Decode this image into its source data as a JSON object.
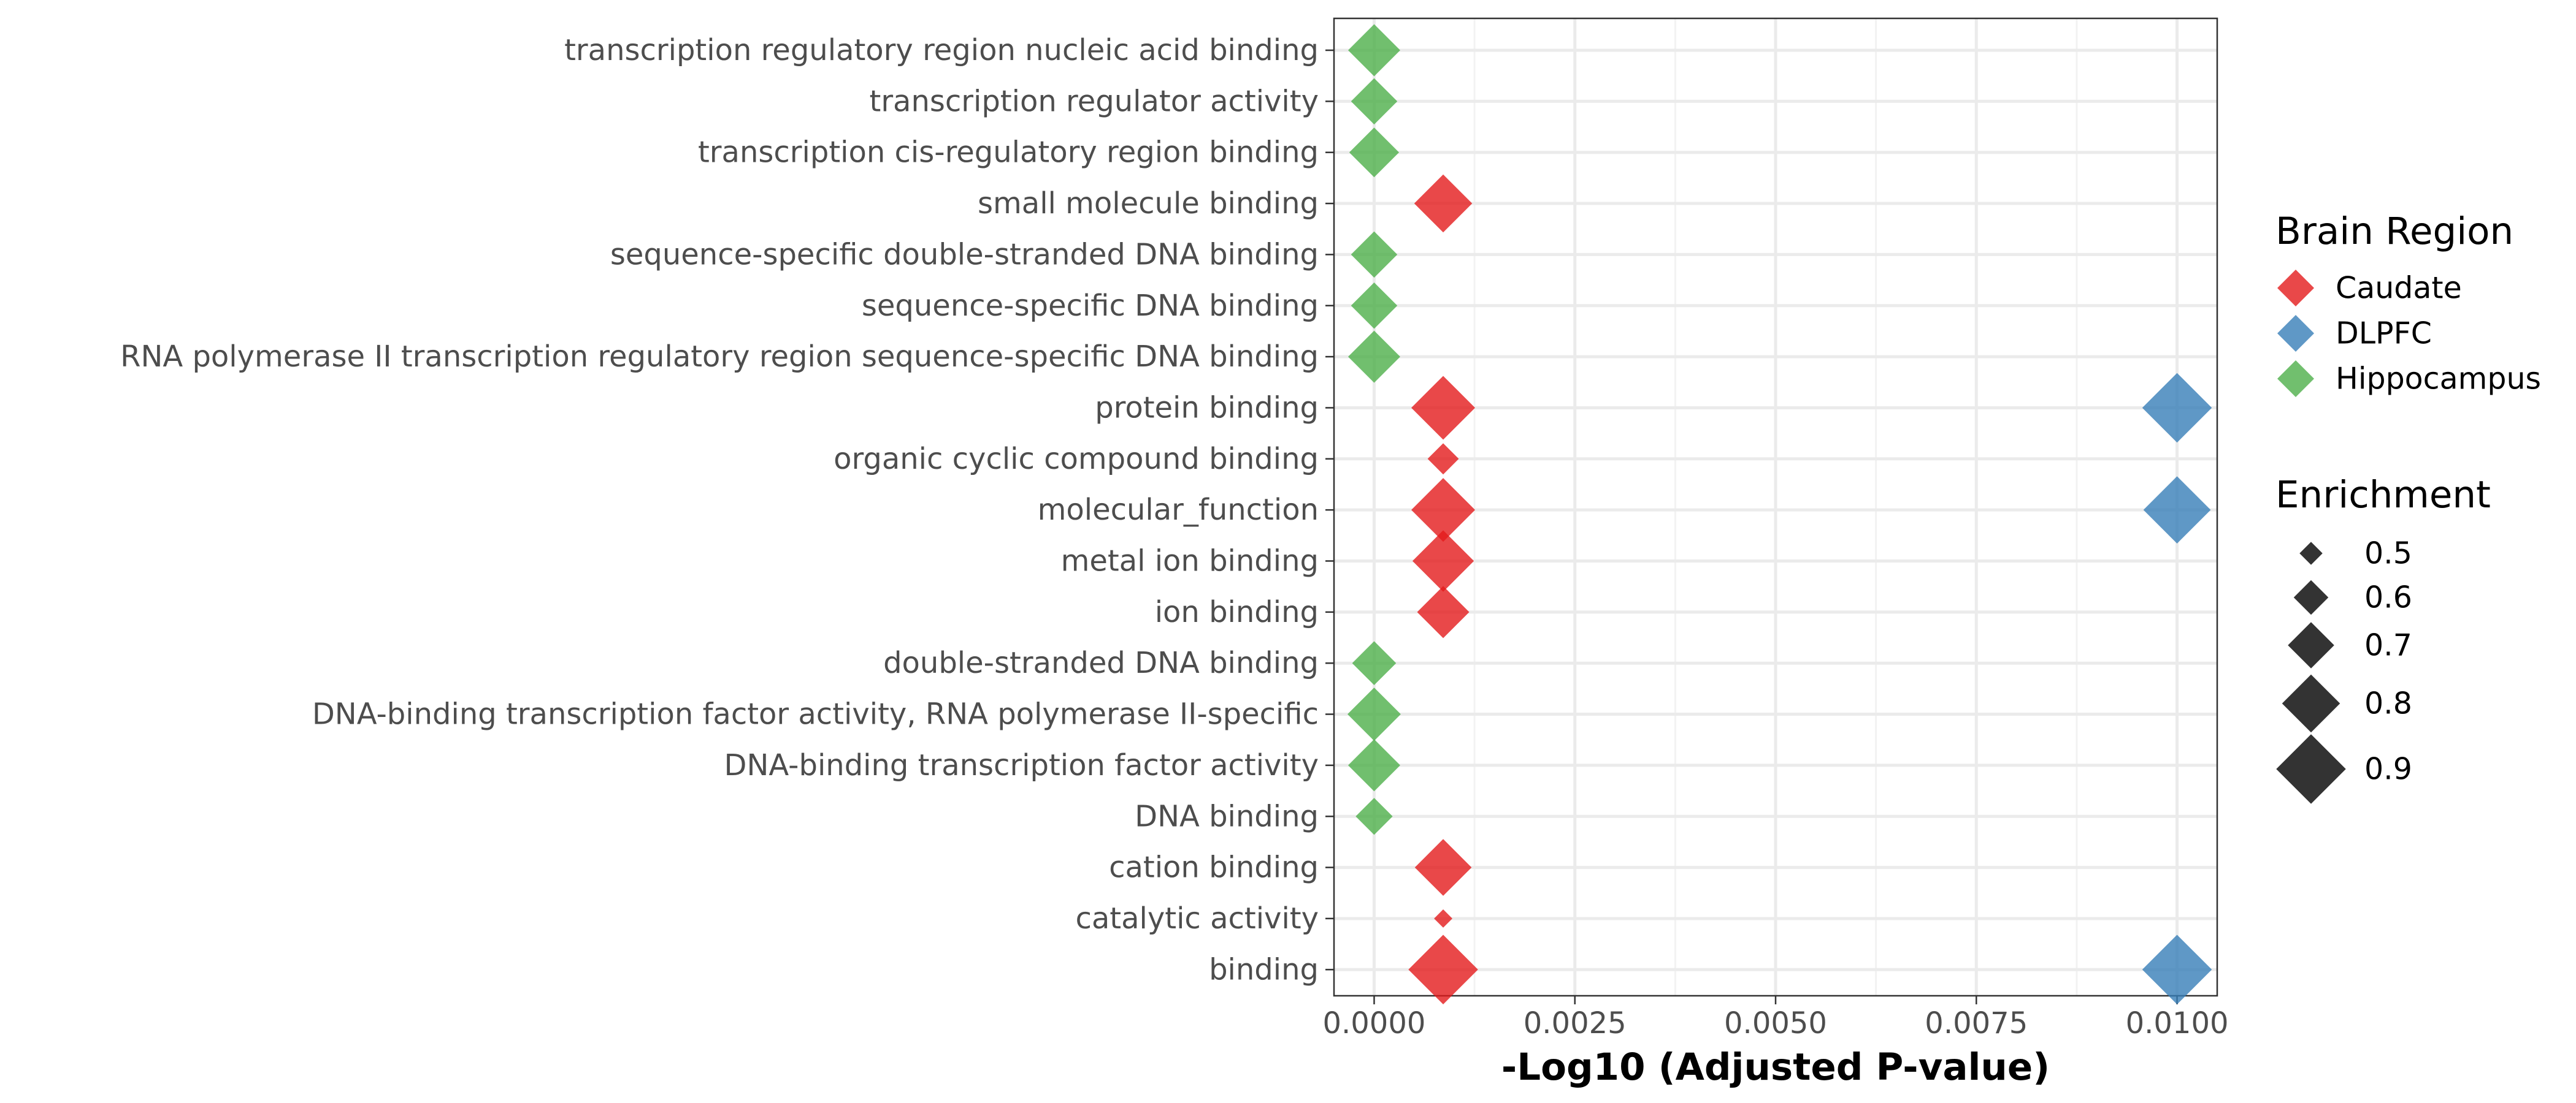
{
  "chart_data": {
    "type": "scatter",
    "xlabel": "-Log10 (Adjusted P-value)",
    "xlim": [
      -0.0005,
      0.0105
    ],
    "x_ticks": [
      0,
      0.0025,
      0.005,
      0.0075,
      0.01
    ],
    "x_tick_labels": [
      "0.0000",
      "0.0025",
      "0.0050",
      "0.0075",
      "0.0100"
    ],
    "grid": true,
    "marker": "diamond",
    "categories": [
      "transcription regulatory region nucleic acid binding",
      "transcription regulator activity",
      "transcription cis-regulatory region binding",
      "small molecule binding",
      "sequence-specific double-stranded DNA binding",
      "sequence-specific DNA binding",
      "RNA polymerase II transcription regulatory region sequence-specific DNA binding",
      "protein binding",
      "organic cyclic compound binding",
      "molecular_function",
      "metal ion binding",
      "ion binding",
      "double-stranded DNA binding",
      "DNA-binding transcription factor activity, RNA polymerase II-specific",
      "DNA-binding transcription factor activity",
      "DNA binding",
      "cation binding",
      "catalytic activity",
      "binding"
    ],
    "series": [
      {
        "name": "Caudate",
        "color": "#e41a1c",
        "points": [
          {
            "category": "small molecule binding",
            "x": 0.00086,
            "enrichment": 0.8
          },
          {
            "category": "protein binding",
            "x": 0.00086,
            "enrichment": 0.85
          },
          {
            "category": "organic cyclic compound binding",
            "x": 0.00086,
            "enrichment": 0.57
          },
          {
            "category": "molecular_function",
            "x": 0.00086,
            "enrichment": 0.85
          },
          {
            "category": "metal ion binding",
            "x": 0.00086,
            "enrichment": 0.83
          },
          {
            "category": "ion binding",
            "x": 0.00086,
            "enrichment": 0.75
          },
          {
            "category": "cation binding",
            "x": 0.00086,
            "enrichment": 0.79
          },
          {
            "category": "catalytic activity",
            "x": 0.00086,
            "enrichment": 0.46
          },
          {
            "category": "binding",
            "x": 0.00086,
            "enrichment": 0.9
          }
        ]
      },
      {
        "name": "DLPFC",
        "color": "#377eb8",
        "points": [
          {
            "category": "protein binding",
            "x": 0.01,
            "enrichment": 0.9
          },
          {
            "category": "molecular_function",
            "x": 0.01,
            "enrichment": 0.88
          },
          {
            "category": "binding",
            "x": 0.01,
            "enrichment": 0.9
          }
        ]
      },
      {
        "name": "Hippocampus",
        "color": "#4daf4a",
        "points": [
          {
            "category": "transcription regulatory region nucleic acid binding",
            "x": 0.0,
            "enrichment": 0.75
          },
          {
            "category": "transcription regulator activity",
            "x": 0.0,
            "enrichment": 0.7
          },
          {
            "category": "transcription cis-regulatory region binding",
            "x": 0.0,
            "enrichment": 0.73
          },
          {
            "category": "sequence-specific double-stranded DNA binding",
            "x": 0.0,
            "enrichment": 0.7
          },
          {
            "category": "sequence-specific DNA binding",
            "x": 0.0,
            "enrichment": 0.7
          },
          {
            "category": "RNA polymerase II transcription regulatory region sequence-specific DNA binding",
            "x": 0.0,
            "enrichment": 0.75
          },
          {
            "category": "double-stranded DNA binding",
            "x": 0.0,
            "enrichment": 0.68
          },
          {
            "category": "DNA-binding transcription factor activity, RNA polymerase II-specific",
            "x": 0.0,
            "enrichment": 0.76
          },
          {
            "category": "DNA-binding transcription factor activity",
            "x": 0.0,
            "enrichment": 0.75
          },
          {
            "category": "DNA binding",
            "x": 0.0,
            "enrichment": 0.62
          }
        ]
      }
    ],
    "legend": {
      "placement": "right",
      "color_title": "Brain Region",
      "color_entries": [
        "Caudate",
        "DLPFC",
        "Hippocampus"
      ],
      "size_title": "Enrichment",
      "size_entries": [
        {
          "label": "0.5",
          "value": 0.5
        },
        {
          "label": "0.6",
          "value": 0.6
        },
        {
          "label": "0.7",
          "value": 0.7
        },
        {
          "label": "0.8",
          "value": 0.8
        },
        {
          "label": "0.9",
          "value": 0.9
        }
      ]
    }
  }
}
